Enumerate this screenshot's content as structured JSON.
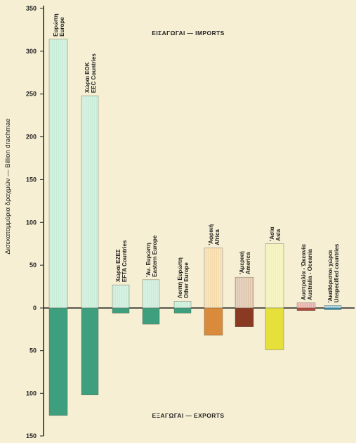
{
  "chart_data": {
    "type": "bar",
    "ylabel": "Δισεκατομμύρια δραχμών — Billion drachmae",
    "imports_label": "ΕΙΣΑΓΩΓΑΙ — IMPORTS",
    "exports_label": "ΕΞΑΓΩΓΑΙ — EXPORTS",
    "ylim_imports": [
      0,
      350
    ],
    "ylim_exports": [
      0,
      150
    ],
    "yticks_imports": [
      "0",
      "50",
      "100",
      "150",
      "200",
      "250",
      "300",
      "350"
    ],
    "yticks_exports": [
      "50",
      "100",
      "150"
    ],
    "categories": [
      {
        "greek": "Ευρώπη",
        "english": "Europe"
      },
      {
        "greek": "Χώραι ΕΟΚ",
        "english": "EEC Countries"
      },
      {
        "greek": "Χώραι ΕΖΕΣ",
        "english": "EFTA Countries"
      },
      {
        "greek": "'Αν. Ευρώπη",
        "english": "Eastern Europe"
      },
      {
        "greek": "Λοιπή Ευρώπη",
        "english": "Other Europe"
      },
      {
        "greek": "'Αφρική",
        "english": "Africa"
      },
      {
        "greek": "'Αμερική",
        "english": "America"
      },
      {
        "greek": "'Ασία",
        "english": "Asia"
      },
      {
        "greek": "Αυστραλία - Ώκεανία",
        "english": "Australia - Oceania"
      },
      {
        "greek": "'Ακαθόριστοι χώραι",
        "english": "Unspecified countries"
      }
    ],
    "series": [
      {
        "name": "ΕΙΣΑΓΩΓΑΙ — IMPORTS",
        "values": [
          314,
          248,
          27,
          33,
          8,
          70,
          36,
          75,
          6,
          3
        ]
      },
      {
        "name": "ΕΞΑΓΩΓΑΙ — EXPORTS",
        "values": [
          126,
          102,
          6,
          19,
          6,
          32,
          22,
          49,
          3,
          2
        ]
      }
    ],
    "colors": {
      "imports": [
        "#c6ecd6",
        "#c6ecd6",
        "#c6ecd6",
        "#c6ecd6",
        "#c6ecd6",
        "#f4d9a8",
        "#dcc0a6",
        "#f3f1ac",
        "#e8a9a2",
        "#9fcfe0"
      ],
      "exports": [
        "#3e9f7e",
        "#3e9f7e",
        "#3e9f7e",
        "#3e9f7e",
        "#3e9f7e",
        "#d98a3a",
        "#8a3a22",
        "#e5e03a",
        "#b54a3a",
        "#2f8fb0"
      ],
      "axis": "#222222",
      "background": "#f6efd4"
    },
    "grid": false
  }
}
